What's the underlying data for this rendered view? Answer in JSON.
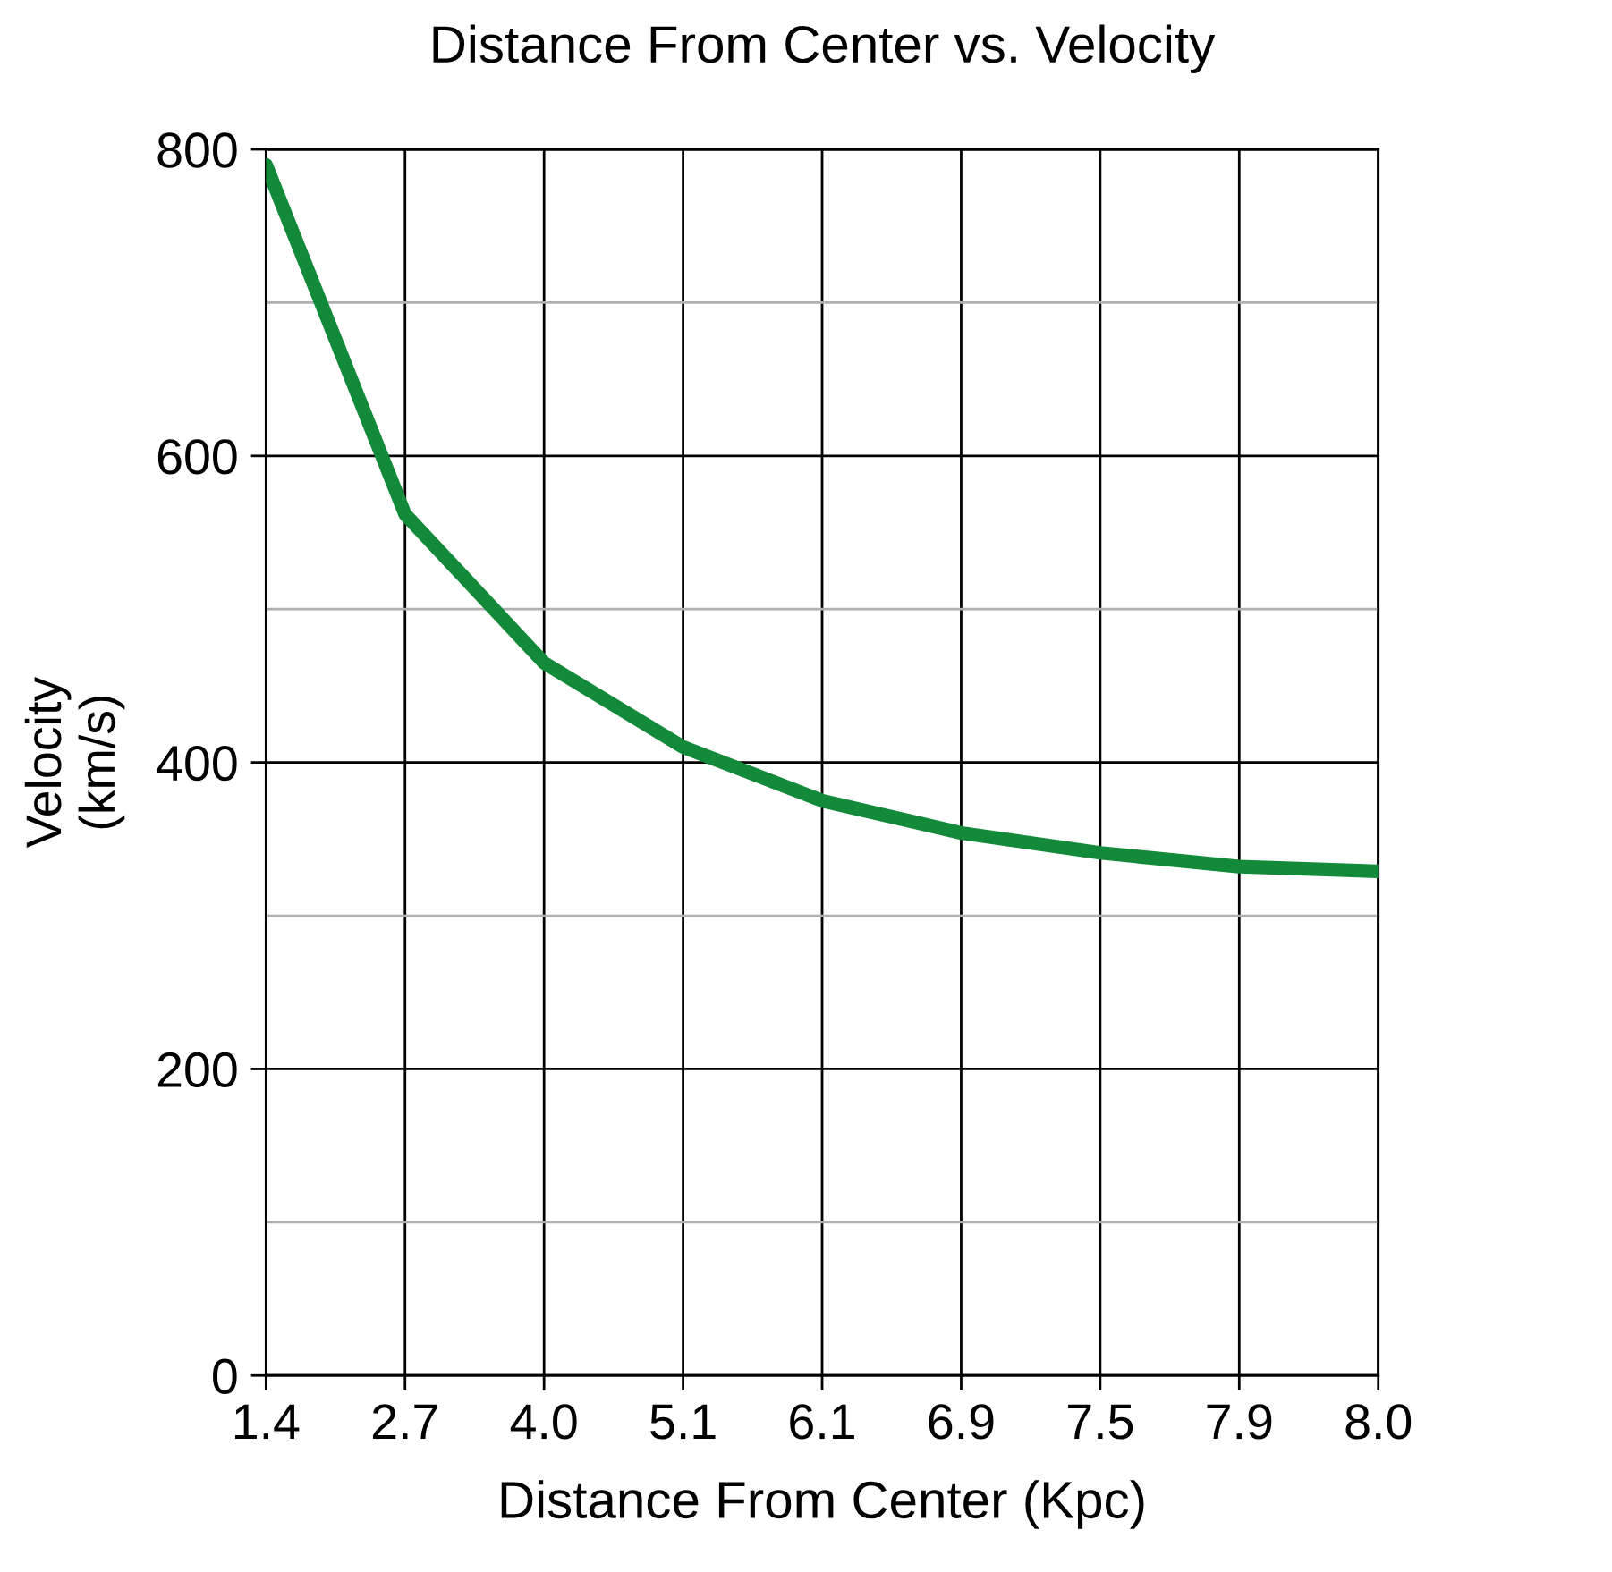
{
  "chart_data": {
    "type": "line",
    "title": "Distance From Center vs. Velocity",
    "xlabel": "Distance From Center (Kpc)",
    "ylabel": "Velocity\n(km/s)",
    "categories": [
      "1.4",
      "2.7",
      "4.0",
      "5.1",
      "6.1",
      "6.9",
      "7.5",
      "7.9",
      "8.0"
    ],
    "series": [
      {
        "color": "#128a3a",
        "values": [
          790,
          562,
          465,
          410,
          375,
          354,
          341,
          332,
          329
        ]
      }
    ],
    "ylim": [
      0,
      800
    ],
    "yticks": [
      0,
      {
        "value": 100,
        "label": null
      },
      200,
      {
        "value": 300,
        "label": null
      },
      400,
      {
        "value": 500,
        "label": null
      },
      600,
      {
        "value": 700,
        "label": null
      },
      800
    ],
    "grid": true,
    "marker": "none",
    "line_style": "solid",
    "legend": false
  }
}
